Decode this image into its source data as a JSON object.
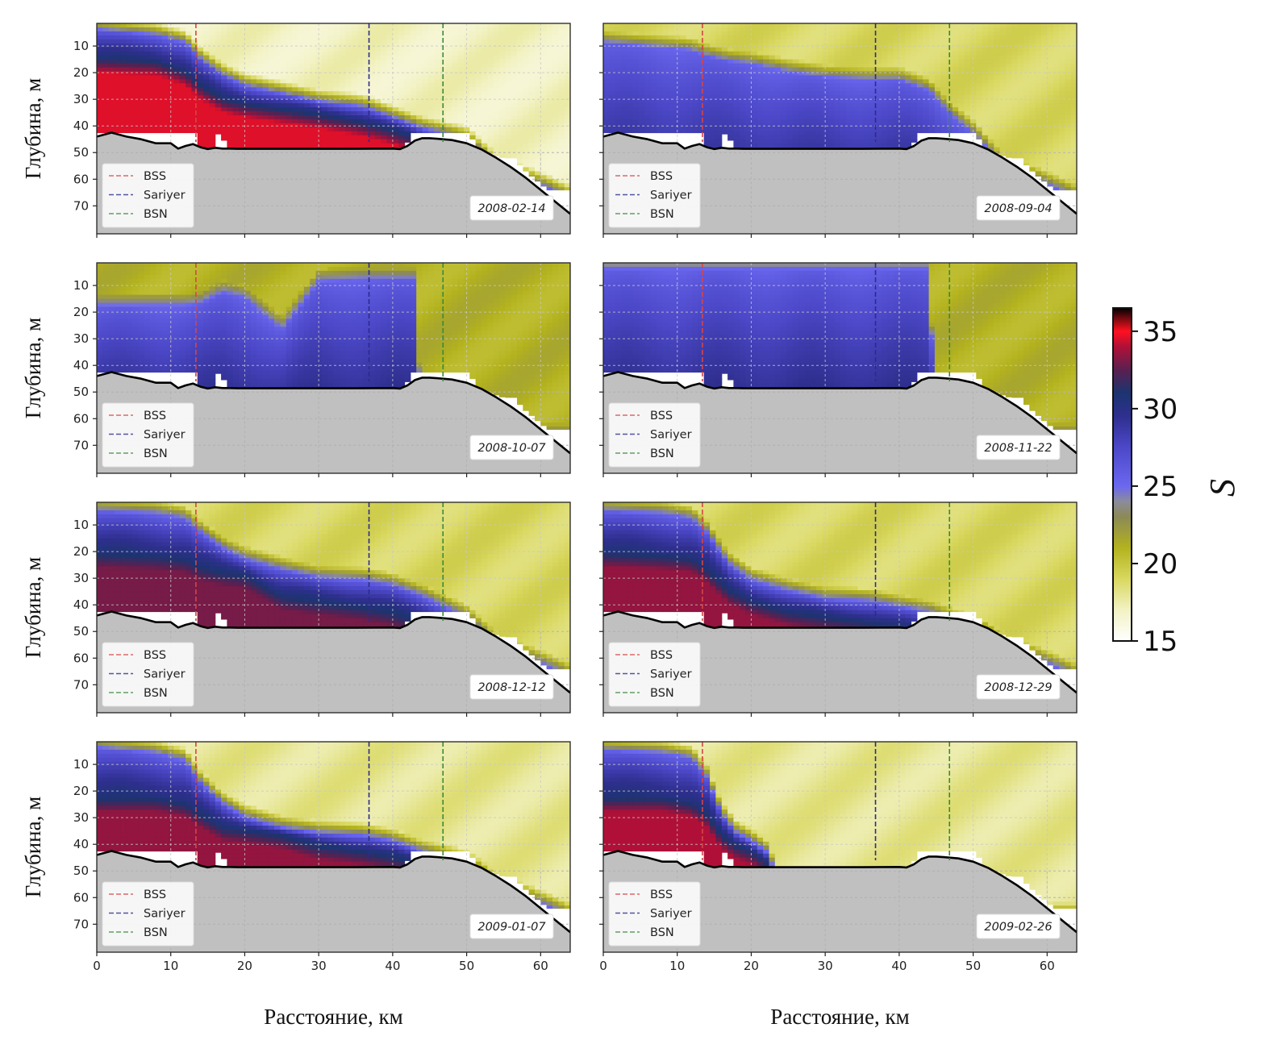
{
  "chart_data": {
    "type": "heatmap",
    "title": "",
    "xlabel": "Расстояние, км",
    "ylabel": "Глубина, м",
    "xlim": [
      0,
      64
    ],
    "ylim": [
      80.5,
      1.5
    ],
    "xticks": [
      0,
      10,
      20,
      30,
      40,
      50,
      60
    ],
    "yticks": [
      10,
      20,
      30,
      40,
      50,
      60,
      70
    ],
    "grid": true,
    "legend_placement": "lower-left",
    "date_label_placement": "lower-right",
    "colorbar": {
      "label": "S",
      "range": [
        15,
        36.5
      ],
      "ticks": [
        15,
        20,
        25,
        30,
        35
      ],
      "stops": [
        {
          "value": 15.0,
          "color": "#ffffff"
        },
        {
          "value": 17.0,
          "color": "#f2f2c4"
        },
        {
          "value": 19.0,
          "color": "#d9d860"
        },
        {
          "value": 21.0,
          "color": "#b3b21e"
        },
        {
          "value": 23.0,
          "color": "#8c8a55"
        },
        {
          "value": 24.0,
          "color": "#8b8b9a"
        },
        {
          "value": 25.0,
          "color": "#6b68f0"
        },
        {
          "value": 27.5,
          "color": "#4c48c8"
        },
        {
          "value": 29.5,
          "color": "#2f2f8f"
        },
        {
          "value": 31.0,
          "color": "#1c3470"
        },
        {
          "value": 32.5,
          "color": "#5a2050"
        },
        {
          "value": 34.0,
          "color": "#b01038"
        },
        {
          "value": 35.0,
          "color": "#ff1020"
        },
        {
          "value": 35.8,
          "color": "#7a0a10"
        },
        {
          "value": 36.5,
          "color": "#000000"
        }
      ]
    },
    "stations": [
      {
        "name": "BSS",
        "x_km": 13.4,
        "color": "#d64545",
        "max_depth": 46
      },
      {
        "name": "Sariyer",
        "x_km": 36.8,
        "color": "#2b2b8c",
        "max_depth": 46
      },
      {
        "name": "BSN",
        "x_km": 46.8,
        "color": "#3a8a3a",
        "max_depth": 46
      }
    ],
    "bathymetry": {
      "x_km": [
        0,
        2,
        4,
        6,
        8,
        10,
        11,
        12,
        13,
        14,
        15,
        16,
        17,
        18,
        19,
        20,
        25,
        30,
        35,
        40,
        41,
        42,
        43,
        44,
        45,
        46,
        48,
        50,
        52,
        54,
        56,
        58,
        60,
        62,
        64
      ],
      "depth_m": [
        44,
        42.5,
        44,
        45,
        46.5,
        46.5,
        48.5,
        47.5,
        46.8,
        48,
        48.7,
        48.2,
        48.5,
        48.5,
        48.6,
        48.6,
        48.6,
        48.6,
        48.6,
        48.5,
        48.7,
        47.5,
        45.5,
        44.6,
        44.6,
        44.8,
        45.3,
        46.5,
        48.8,
        52,
        55.5,
        59.5,
        64,
        68.5,
        73
      ]
    },
    "model_mask": {
      "x_km": [
        0,
        13.2,
        13.6,
        15.6,
        16.2,
        16.9,
        17.6,
        41.6,
        42.6,
        50.4,
        51.4,
        55,
        56.6,
        57.4,
        61,
        62,
        64
      ],
      "depth_m": [
        42.5,
        42.5,
        48.5,
        48.5,
        43.0,
        43.0,
        48.5,
        48.5,
        42.5,
        42.5,
        48.5,
        52,
        52,
        55.5,
        64,
        64,
        64
      ]
    },
    "panels": [
      {
        "date": "2008-02-14",
        "profile_x_km": [
          0,
          8,
          12,
          14,
          17,
          20,
          25,
          30,
          36,
          40,
          44,
          47,
          50,
          54,
          64
        ],
        "upper_interface_m": [
          1,
          3,
          6,
          12,
          18,
          22,
          25,
          28,
          30,
          34,
          38,
          40,
          42,
          52,
          64
        ],
        "lower_interface_m": [
          14,
          15,
          19,
          24,
          29,
          31,
          33,
          35,
          38,
          41,
          45,
          48,
          60,
          70,
          80
        ],
        "surface_salinity": 17.0,
        "deep_salinity": 34.6
      },
      {
        "date": "2008-09-04",
        "profile_x_km": [
          0,
          8,
          12,
          14,
          17,
          20,
          25,
          30,
          36,
          40,
          44,
          47,
          50,
          54,
          64
        ],
        "upper_interface_m": [
          6,
          8,
          9,
          11,
          13,
          14,
          17,
          19,
          20,
          20,
          24,
          33,
          40,
          52,
          64
        ],
        "lower_interface_m": [
          60,
          60,
          60,
          60,
          60,
          60,
          60,
          60,
          60,
          60,
          60,
          60,
          60,
          70,
          80
        ],
        "surface_salinity": 19.0,
        "deep_salinity": 29.5
      },
      {
        "date": "2008-10-07",
        "profile_x_km": [
          0,
          8,
          12,
          14,
          17,
          20,
          25,
          30,
          36,
          40,
          43,
          44,
          47,
          50,
          64
        ],
        "upper_interface_m": [
          15,
          15,
          15,
          14,
          10,
          12,
          24,
          6,
          5,
          5,
          5,
          64,
          64,
          64,
          64
        ],
        "lower_interface_m": [
          60,
          60,
          60,
          60,
          60,
          60,
          60,
          60,
          60,
          60,
          60,
          60,
          60,
          70,
          80
        ],
        "surface_salinity": 24.0,
        "deep_salinity": 30.0
      },
      {
        "date": "2008-11-22",
        "profile_x_km": [
          0,
          8,
          12,
          14,
          17,
          20,
          25,
          30,
          36,
          40,
          44,
          45,
          47,
          50,
          64
        ],
        "upper_interface_m": [
          1,
          1,
          1,
          1,
          1,
          1,
          1,
          1,
          1,
          1,
          1,
          64,
          64,
          64,
          64
        ],
        "lower_interface_m": [
          60,
          60,
          60,
          60,
          60,
          60,
          60,
          60,
          60,
          60,
          60,
          60,
          60,
          70,
          80
        ],
        "surface_salinity": 26.0,
        "deep_salinity": 30.0
      },
      {
        "date": "2008-12-12",
        "profile_x_km": [
          0,
          8,
          12,
          14,
          17,
          20,
          25,
          30,
          36,
          40,
          44,
          47,
          50,
          54,
          64
        ],
        "upper_interface_m": [
          2,
          3,
          5,
          10,
          16,
          20,
          24,
          27,
          28,
          30,
          34,
          38,
          42,
          52,
          64
        ],
        "lower_interface_m": [
          20,
          21,
          22,
          25,
          27,
          28,
          36,
          38,
          40,
          42,
          46,
          48,
          60,
          70,
          80
        ],
        "surface_salinity": 19.0,
        "deep_salinity": 33.0
      },
      {
        "date": "2008-12-29",
        "profile_x_km": [
          0,
          8,
          12,
          14,
          17,
          20,
          25,
          30,
          36,
          40,
          44,
          47,
          50,
          54,
          64
        ],
        "upper_interface_m": [
          2,
          3,
          5,
          10,
          22,
          28,
          32,
          35,
          36,
          38,
          40,
          43,
          45,
          52,
          64
        ],
        "lower_interface_m": [
          20,
          21,
          22,
          26,
          34,
          38,
          42,
          44,
          46,
          48,
          50,
          52,
          60,
          70,
          80
        ],
        "surface_salinity": 19.0,
        "deep_salinity": 33.5
      },
      {
        "date": "2009-01-07",
        "profile_x_km": [
          0,
          8,
          12,
          14,
          17,
          20,
          25,
          30,
          36,
          40,
          44,
          47,
          50,
          54,
          64
        ],
        "upper_interface_m": [
          1,
          3,
          6,
          14,
          22,
          27,
          31,
          33,
          34,
          36,
          40,
          42,
          44,
          52,
          64
        ],
        "lower_interface_m": [
          22,
          22,
          24,
          28,
          33,
          34,
          36,
          40,
          42,
          44,
          47,
          50,
          60,
          70,
          80
        ],
        "surface_salinity": 18.0,
        "deep_salinity": 33.5
      },
      {
        "date": "2009-02-26",
        "profile_x_km": [
          0,
          8,
          12,
          14,
          16,
          18,
          20,
          22,
          23,
          25,
          30,
          40,
          50,
          54,
          64
        ],
        "upper_interface_m": [
          2,
          3,
          5,
          12,
          26,
          33,
          36,
          40,
          46,
          64,
          64,
          64,
          64,
          64,
          64
        ],
        "lower_interface_m": [
          22,
          22,
          24,
          28,
          36,
          40,
          42,
          46,
          60,
          70,
          70,
          70,
          70,
          70,
          80
        ],
        "surface_salinity": 18.0,
        "deep_salinity": 34.0
      }
    ]
  },
  "figure": {
    "ylabel": "Глубина, м",
    "xlabel": "Расстояние, км",
    "legend_entries": [
      "BSS",
      "Sariyer",
      "BSN"
    ],
    "colorbar_label": "S",
    "colorbar_ticks": [
      "15",
      "20",
      "25",
      "30",
      "35"
    ],
    "ytick_labels": [
      "10",
      "20",
      "30",
      "40",
      "50",
      "60",
      "70"
    ],
    "xtick_labels": [
      "0",
      "10",
      "20",
      "30",
      "40",
      "50",
      "60"
    ],
    "dates": [
      "2008-02-14",
      "2008-09-04",
      "2008-10-07",
      "2008-11-22",
      "2008-12-12",
      "2008-12-29",
      "2009-01-07",
      "2009-02-26"
    ]
  }
}
